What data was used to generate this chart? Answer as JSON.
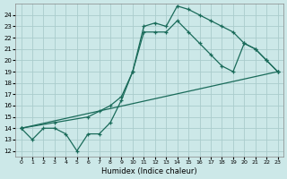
{
  "xlabel": "Humidex (Indice chaleur)",
  "bg_color": "#cce8e8",
  "grid_color": "#aacccc",
  "line_color": "#1a6b5a",
  "xlim": [
    -0.5,
    23.5
  ],
  "ylim": [
    11.5,
    25.0
  ],
  "x_ticks": [
    0,
    1,
    2,
    3,
    4,
    5,
    6,
    7,
    8,
    9,
    10,
    11,
    12,
    13,
    14,
    15,
    16,
    17,
    18,
    19,
    20,
    21,
    22,
    23
  ],
  "y_ticks": [
    12,
    13,
    14,
    15,
    16,
    17,
    18,
    19,
    20,
    21,
    22,
    23,
    24
  ],
  "line1_x": [
    0,
    1,
    2,
    3,
    4,
    5,
    6,
    7,
    8,
    9,
    10,
    11,
    12,
    13,
    14,
    15,
    16,
    17,
    18,
    19,
    20,
    21,
    22,
    23
  ],
  "line1_y": [
    14.0,
    13.0,
    14.0,
    14.0,
    13.5,
    12.0,
    13.5,
    13.5,
    14.5,
    16.5,
    19.0,
    23.0,
    23.3,
    23.0,
    24.8,
    24.5,
    24.0,
    23.5,
    23.0,
    22.5,
    21.5,
    21.0,
    20.0,
    19.0
  ],
  "line2_x": [
    0,
    3,
    6,
    7,
    8,
    9,
    10,
    11,
    12,
    13,
    14,
    15,
    16,
    17,
    18,
    19,
    20,
    21,
    22,
    23
  ],
  "line2_y": [
    14.0,
    14.5,
    15.0,
    15.5,
    16.0,
    16.8,
    19.0,
    22.5,
    22.5,
    22.5,
    23.5,
    22.5,
    21.5,
    20.5,
    19.5,
    19.0,
    21.5,
    21.0,
    20.0,
    19.0
  ],
  "line3_x": [
    0,
    23
  ],
  "line3_y": [
    14.0,
    19.0
  ]
}
